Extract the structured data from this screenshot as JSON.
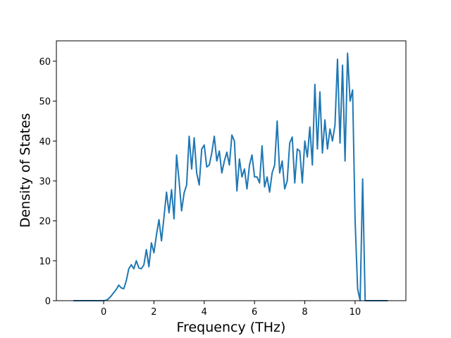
{
  "chart_data": {
    "type": "line",
    "xlabel": "Frequency (THz)",
    "ylabel": "Density of States",
    "color": "#1f77b4",
    "x": [
      -1.2,
      -1.1,
      -1.0,
      -0.9,
      -0.8,
      -0.7,
      -0.6,
      -0.5,
      -0.4,
      -0.3,
      -0.2,
      -0.1,
      0.0,
      0.1,
      0.2,
      0.3,
      0.4,
      0.5,
      0.6,
      0.7,
      0.8,
      0.9,
      1.0,
      1.1,
      1.2,
      1.3,
      1.4,
      1.5,
      1.6,
      1.7,
      1.8,
      1.9,
      2.0,
      2.1,
      2.2,
      2.3,
      2.4,
      2.5,
      2.6,
      2.7,
      2.8,
      2.9,
      3.0,
      3.1,
      3.2,
      3.3,
      3.4,
      3.5,
      3.6,
      3.7,
      3.8,
      3.9,
      4.0,
      4.1,
      4.2,
      4.3,
      4.4,
      4.5,
      4.6,
      4.7,
      4.8,
      4.9,
      5.0,
      5.1,
      5.2,
      5.3,
      5.4,
      5.5,
      5.6,
      5.7,
      5.8,
      5.9,
      6.0,
      6.1,
      6.2,
      6.3,
      6.4,
      6.5,
      6.6,
      6.7,
      6.8,
      6.9,
      7.0,
      7.1,
      7.2,
      7.3,
      7.4,
      7.5,
      7.6,
      7.7,
      7.8,
      7.9,
      8.0,
      8.1,
      8.2,
      8.3,
      8.4,
      8.5,
      8.6,
      8.7,
      8.8,
      8.9,
      9.0,
      9.1,
      9.2,
      9.3,
      9.4,
      9.5,
      9.6,
      9.7,
      9.8,
      9.9,
      10.0,
      10.1,
      10.2,
      10.3,
      10.4,
      10.5,
      10.6,
      10.7,
      10.8,
      10.9,
      11.0,
      11.1,
      11.2,
      11.3
    ],
    "values": [
      0,
      0,
      0,
      0,
      0,
      0,
      0,
      0,
      0,
      0,
      0,
      0,
      0,
      0.1,
      0.5,
      1.2,
      2,
      2.8,
      3.9,
      3.2,
      3.0,
      5,
      8,
      9,
      8,
      10,
      8.2,
      8,
      9,
      12.8,
      8.5,
      14.5,
      12,
      16.5,
      20.3,
      15,
      21,
      27.2,
      22,
      27.8,
      20.5,
      36.5,
      30,
      22.5,
      27,
      29,
      41.2,
      33,
      40.8,
      32,
      29,
      38,
      39,
      33.5,
      34,
      37,
      41.2,
      35,
      37.5,
      32,
      35,
      37.2,
      34,
      41.5,
      40,
      27.5,
      35.5,
      31,
      33,
      28,
      34,
      36.5,
      31,
      31,
      29.5,
      38.8,
      28.5,
      31,
      27.2,
      32,
      34,
      45,
      32,
      35,
      28,
      30,
      39.5,
      41,
      29.5,
      38,
      37.5,
      29.5,
      40,
      36,
      43.5,
      34,
      54.2,
      38,
      52.3,
      37,
      45.3,
      38,
      43,
      40,
      44,
      60.5,
      39.5,
      59,
      35,
      62,
      50,
      52.8,
      20,
      3,
      0,
      30.5,
      0,
      0,
      0,
      0,
      0,
      0,
      0,
      0,
      0,
      0
    ],
    "xlim": [
      -1.88,
      12.02
    ],
    "ylim": [
      0,
      65.1
    ],
    "xticks": [
      0,
      2,
      4,
      6,
      8,
      10
    ],
    "yticks": [
      0,
      10,
      20,
      30,
      40,
      50,
      60
    ]
  }
}
